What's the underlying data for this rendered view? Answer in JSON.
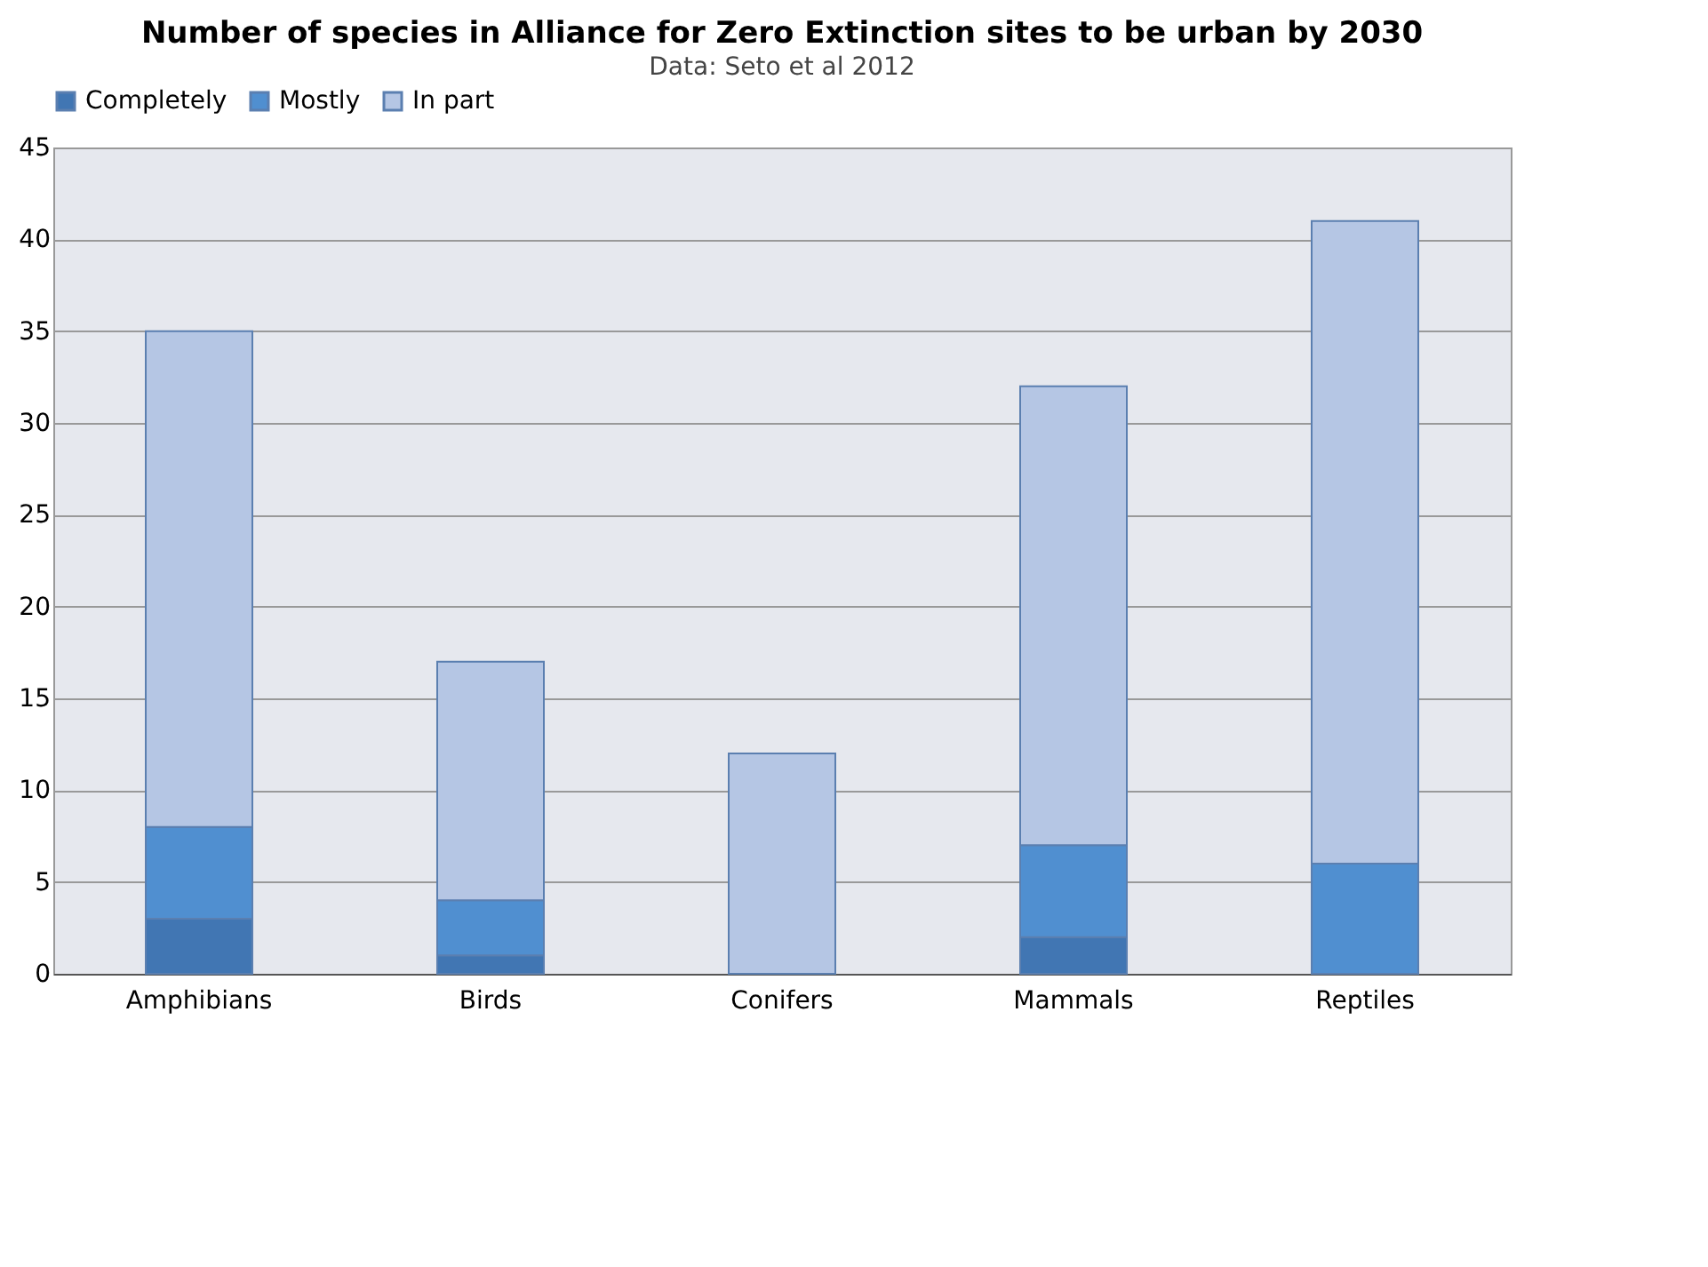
{
  "chart_data": {
    "type": "bar",
    "stacked": true,
    "title": "Number of species in Alliance for Zero Extinction sites to be urban by 2030",
    "annotations": [
      "Data: Seto et al 2012"
    ],
    "categories": [
      "Amphibians",
      "Birds",
      "Conifers",
      "Mammals",
      "Reptiles"
    ],
    "series": [
      {
        "name": "Completely",
        "color": "#4176b3",
        "values": [
          3,
          1,
          0,
          2,
          0
        ]
      },
      {
        "name": "Mostly",
        "color": "#508fd0",
        "values": [
          5,
          3,
          0,
          5,
          6
        ]
      },
      {
        "name": "In part",
        "color": "#b5c6e4",
        "values": [
          27,
          13,
          12,
          25,
          35
        ]
      }
    ],
    "ylim": [
      0,
      45
    ],
    "yticks": [
      0,
      5,
      10,
      15,
      20,
      25,
      30,
      35,
      40,
      45
    ],
    "grid": "y",
    "legend": "top"
  }
}
